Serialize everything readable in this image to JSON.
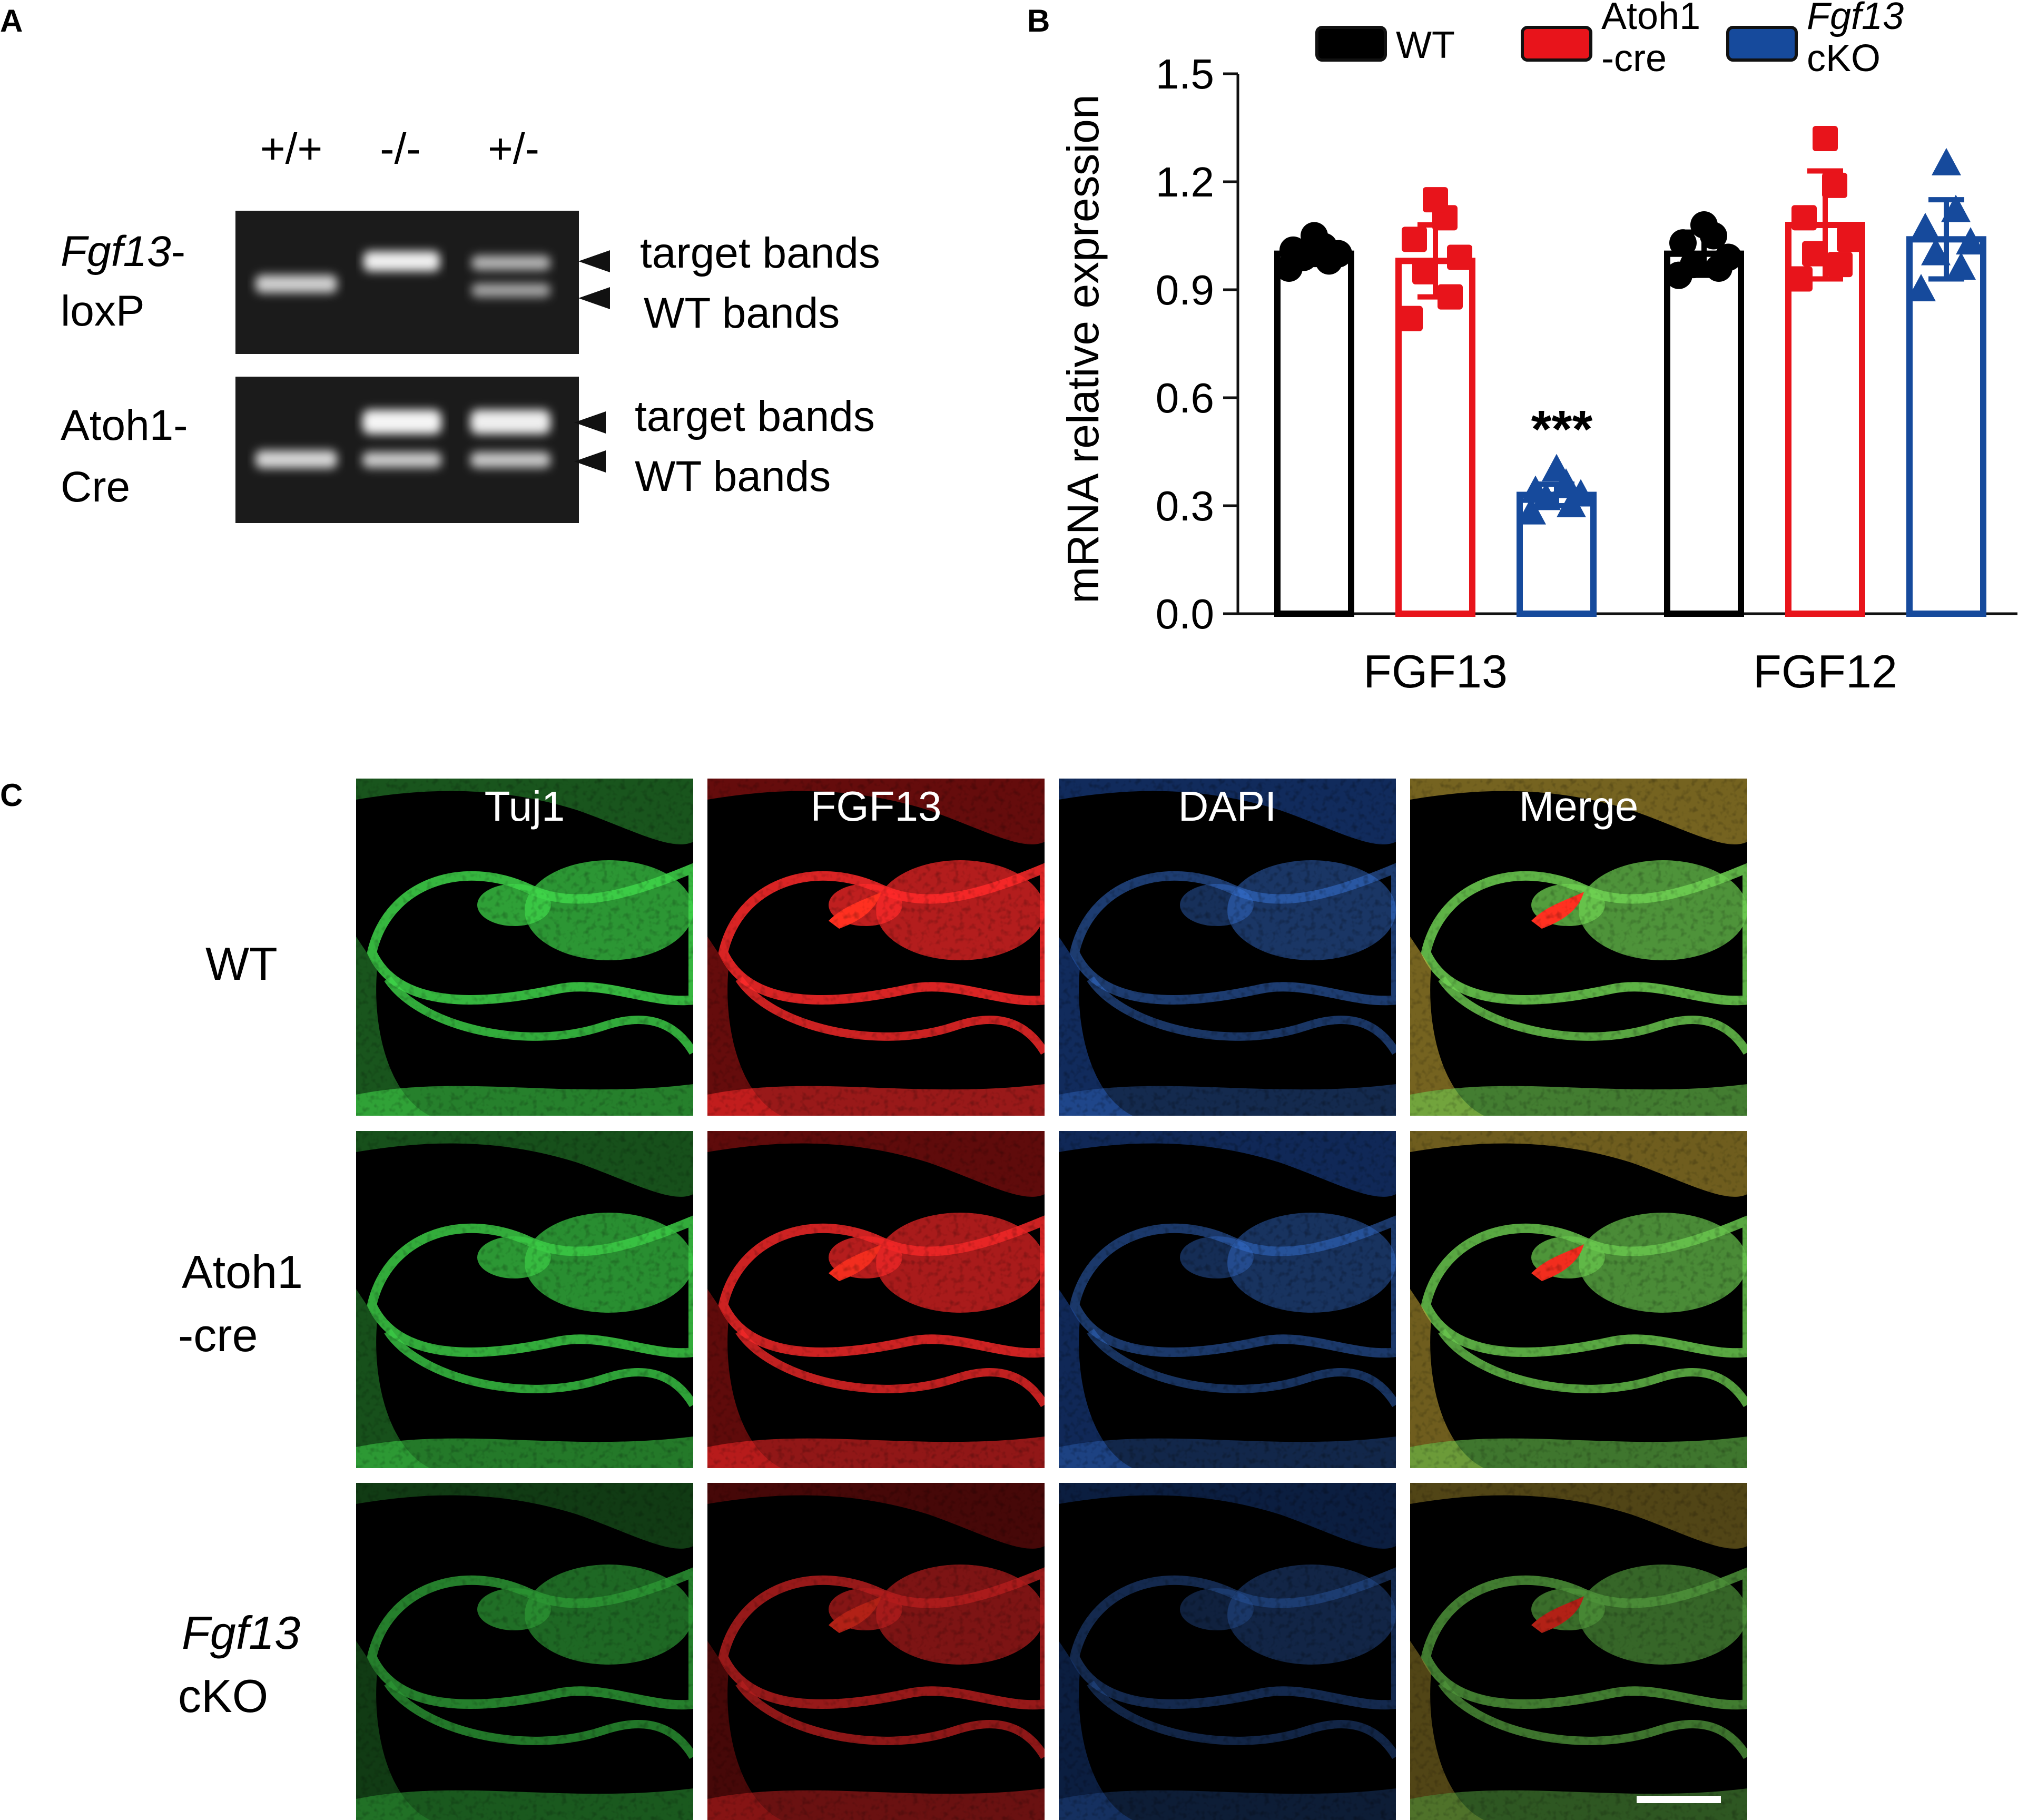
{
  "panels": {
    "a": {
      "letter": "A",
      "lanes": [
        "+/+",
        "-/-",
        "+/-"
      ],
      "gels": [
        {
          "label_line1": "Fgf13",
          "label_line1_suffix": "-",
          "label_line2": "loxP",
          "arrow_top": "target bands",
          "arrow_bottom": "WT bands"
        },
        {
          "label_line1": "Atoh1-",
          "label_line1_suffix": "",
          "label_line2": "Cre",
          "arrow_top": "target bands",
          "arrow_bottom": "WT bands"
        }
      ]
    },
    "b": {
      "letter": "B"
    },
    "c": {
      "letter": "C",
      "columns": [
        "Tuj1",
        "FGF13",
        "DAPI",
        "Merge"
      ],
      "rows": [
        {
          "line1": "WT",
          "line2": "",
          "italic_line1": false
        },
        {
          "line1": "Atoh1",
          "line2": "-cre",
          "italic_line1": false
        },
        {
          "line1": "Fgf13",
          "line2": "cKO",
          "italic_line1": true
        }
      ]
    }
  },
  "chart_data": {
    "type": "bar",
    "title": "",
    "xlabel": "",
    "ylabel": "mRNA relative expression",
    "ylim": [
      0,
      1.5
    ],
    "yticks": [
      "0.0",
      "0.3",
      "0.6",
      "0.9",
      "1.2",
      "1.5"
    ],
    "categories": [
      "FGF13",
      "FGF12"
    ],
    "legend_position": "top",
    "series": [
      {
        "name": "WT",
        "color": "#000000",
        "marker": "circle",
        "values": [
          1.0,
          1.0
        ],
        "errors": [
          0.03,
          0.06
        ],
        "points": [
          [
            0.96,
            0.98,
            0.99,
            1.0,
            1.01,
            1.02,
            1.05
          ],
          [
            0.94,
            0.96,
            0.97,
            0.99,
            1.03,
            1.05,
            1.08
          ]
        ]
      },
      {
        "name": "Atoh1\n-cre",
        "color": "#e8141b",
        "marker": "square",
        "values": [
          0.98,
          1.08
        ],
        "errors": [
          0.1,
          0.15
        ],
        "points": [
          [
            0.82,
            0.88,
            0.95,
            0.99,
            1.04,
            1.1,
            1.15
          ],
          [
            0.93,
            0.97,
            1.0,
            1.04,
            1.1,
            1.19,
            1.32
          ]
        ]
      },
      {
        "name": "Fgf13\ncKO",
        "color": "#164a9c",
        "marker": "triangle",
        "values": [
          0.33,
          1.04
        ],
        "errors": [
          0.03,
          0.11
        ],
        "points": [
          [
            0.28,
            0.3,
            0.32,
            0.33,
            0.34,
            0.36,
            0.4
          ],
          [
            0.9,
            0.96,
            1.0,
            1.03,
            1.07,
            1.12,
            1.25
          ]
        ]
      }
    ],
    "annotations": [
      {
        "text": "***",
        "category": "FGF13",
        "series": "Fgf13\ncKO"
      }
    ]
  }
}
